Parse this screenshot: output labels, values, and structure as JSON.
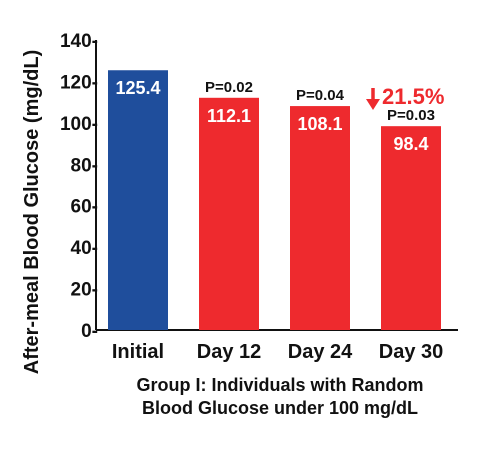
{
  "chart_data": {
    "type": "bar",
    "categories": [
      "Initial",
      "Day 12",
      "Day 24",
      "Day 30"
    ],
    "values": [
      125.4,
      112.1,
      108.1,
      98.4
    ],
    "value_labels": [
      "125.4",
      "112.1",
      "108.1",
      "98.4"
    ],
    "p_values": [
      "",
      "P=0.02",
      "P=0.04",
      "P=0.03"
    ],
    "bar_colors": [
      "#1f4e9c",
      "#ee2a2e",
      "#ee2a2e",
      "#ee2a2e"
    ],
    "ylabel": "After-meal Blood Glucose (mg/dL)",
    "xlabel_line1": "Group I: Individuals with Random",
    "xlabel_line2": "Blood Glucose under 100 mg/dL",
    "ylim": [
      0,
      140
    ],
    "yticks": [
      0,
      20,
      40,
      60,
      80,
      100,
      120,
      140
    ],
    "ytick_labels": [
      "0-",
      "20-",
      "40-",
      "60-",
      "80-",
      "100-",
      "120-",
      "140-"
    ],
    "annotation": {
      "arrow": "down-arrow",
      "text": "21.5%",
      "color": "#ee2a2e"
    },
    "grid": false,
    "legend": "none"
  }
}
